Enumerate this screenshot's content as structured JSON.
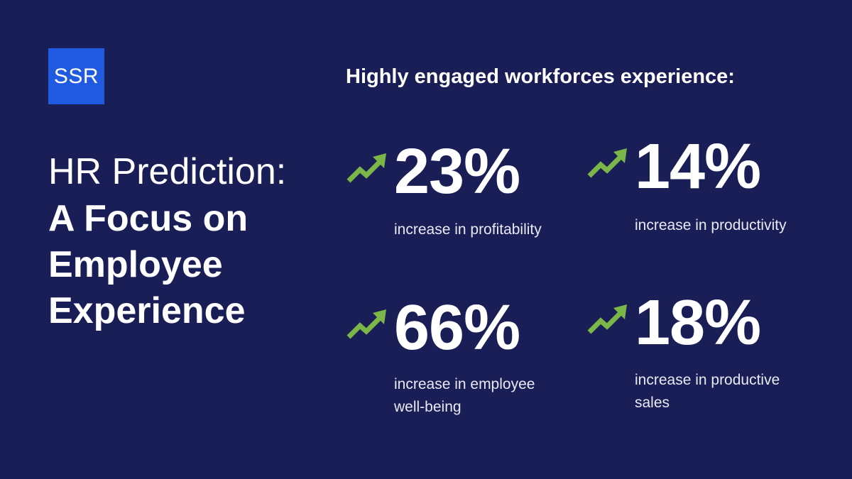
{
  "logo": {
    "text": "SSR"
  },
  "title": {
    "line1": "HR Prediction:",
    "line2": "A Focus on Employee Experience"
  },
  "heading": "Highly engaged workforces experience:",
  "colors": {
    "background": "#1a1e56",
    "logo_background": "#1f5ae0",
    "arrow": "#7ab648"
  },
  "stats": [
    {
      "icon": "trend-up-arrow-icon",
      "value": "23%",
      "description": "increase in profitability"
    },
    {
      "icon": "trend-up-arrow-icon",
      "value": "14%",
      "description": "increase in productivity"
    },
    {
      "icon": "trend-up-arrow-icon",
      "value": "66%",
      "description": "increase in employee well-being"
    },
    {
      "icon": "trend-up-arrow-icon",
      "value": "18%",
      "description": "increase in productive sales"
    }
  ]
}
